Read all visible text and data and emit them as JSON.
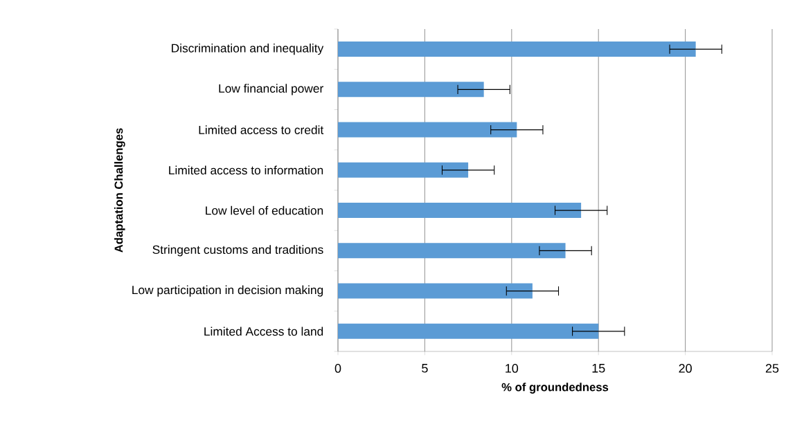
{
  "chart_data": {
    "type": "bar",
    "orientation": "horizontal",
    "categories": [
      "Discrimination and inequality",
      "Low financial power",
      "Limited access to credit",
      "Limited access to information",
      "Low level of education",
      "Stringent customs and traditions",
      "Low participation in decision making",
      "Limited Access to land"
    ],
    "values": [
      20.6,
      8.4,
      10.3,
      7.5,
      14.0,
      13.1,
      11.2,
      15.0
    ],
    "errors": [
      1.5,
      1.5,
      1.5,
      1.5,
      1.5,
      1.5,
      1.5,
      1.5
    ],
    "color": "#5b9bd5",
    "xlabel": "% of groundedness",
    "ylabel": "Adaptation Challenges",
    "xlim": [
      0,
      25
    ],
    "xticks": [
      0,
      5,
      10,
      15,
      20,
      25
    ],
    "grid": "x"
  }
}
